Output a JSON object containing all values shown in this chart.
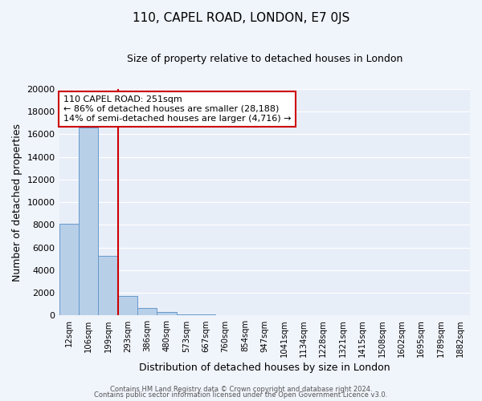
{
  "title": "110, CAPEL ROAD, LONDON, E7 0JS",
  "subtitle": "Size of property relative to detached houses in London",
  "xlabel": "Distribution of detached houses by size in London",
  "ylabel": "Number of detached properties",
  "bar_labels": [
    "12sqm",
    "106sqm",
    "199sqm",
    "293sqm",
    "386sqm",
    "480sqm",
    "573sqm",
    "667sqm",
    "760sqm",
    "854sqm",
    "947sqm",
    "1041sqm",
    "1134sqm",
    "1228sqm",
    "1321sqm",
    "1415sqm",
    "1508sqm",
    "1602sqm",
    "1695sqm",
    "1789sqm",
    "1882sqm"
  ],
  "bar_heights": [
    8100,
    16600,
    5300,
    1750,
    650,
    280,
    130,
    100,
    60,
    40,
    0,
    0,
    0,
    0,
    0,
    0,
    0,
    0,
    0,
    0,
    0
  ],
  "bar_color": "#b8cfe8",
  "bar_edge_color": "#6699cc",
  "background_color": "#e8eef8",
  "fig_background": "#f0f4fb",
  "grid_color": "#ffffff",
  "vline_color": "#cc0000",
  "ylim": [
    0,
    20000
  ],
  "yticks": [
    0,
    2000,
    4000,
    6000,
    8000,
    10000,
    12000,
    14000,
    16000,
    18000,
    20000
  ],
  "annotation_title": "110 CAPEL ROAD: 251sqm",
  "annotation_line1": "← 86% of detached houses are smaller (28,188)",
  "annotation_line2": "14% of semi-detached houses are larger (4,716) →",
  "footer1": "Contains HM Land Registry data © Crown copyright and database right 2024.",
  "footer2": "Contains public sector information licensed under the Open Government Licence v3.0."
}
